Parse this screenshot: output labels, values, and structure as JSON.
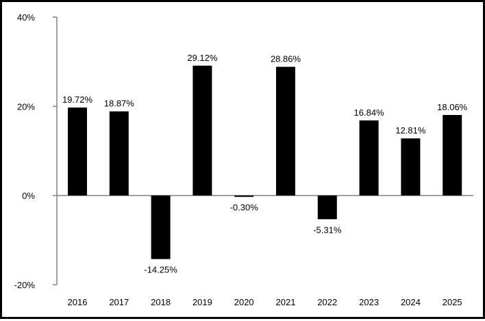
{
  "chart_data": {
    "type": "bar",
    "categories": [
      "2016",
      "2017",
      "2018",
      "2019",
      "2020",
      "2021",
      "2022",
      "2023",
      "2024",
      "2025"
    ],
    "values": [
      19.72,
      18.87,
      -14.25,
      29.12,
      -0.3,
      28.86,
      -5.31,
      16.84,
      12.81,
      18.06
    ],
    "data_labels": [
      "19.72%",
      "18.87%",
      "-14.25%",
      "29.12%",
      "-0.30%",
      "28.86%",
      "-5.31%",
      "16.84%",
      "12.81%",
      "18.06%"
    ],
    "title": "",
    "xlabel": "",
    "ylabel": "",
    "ylim": [
      -20,
      40
    ],
    "yticks": [
      40,
      20,
      0,
      -20
    ],
    "ytick_labels": [
      "40%",
      "20%",
      "0%",
      "-20%"
    ],
    "grid": false,
    "legend": "none",
    "bar_color": "#000000",
    "axis_color": "#808080"
  }
}
